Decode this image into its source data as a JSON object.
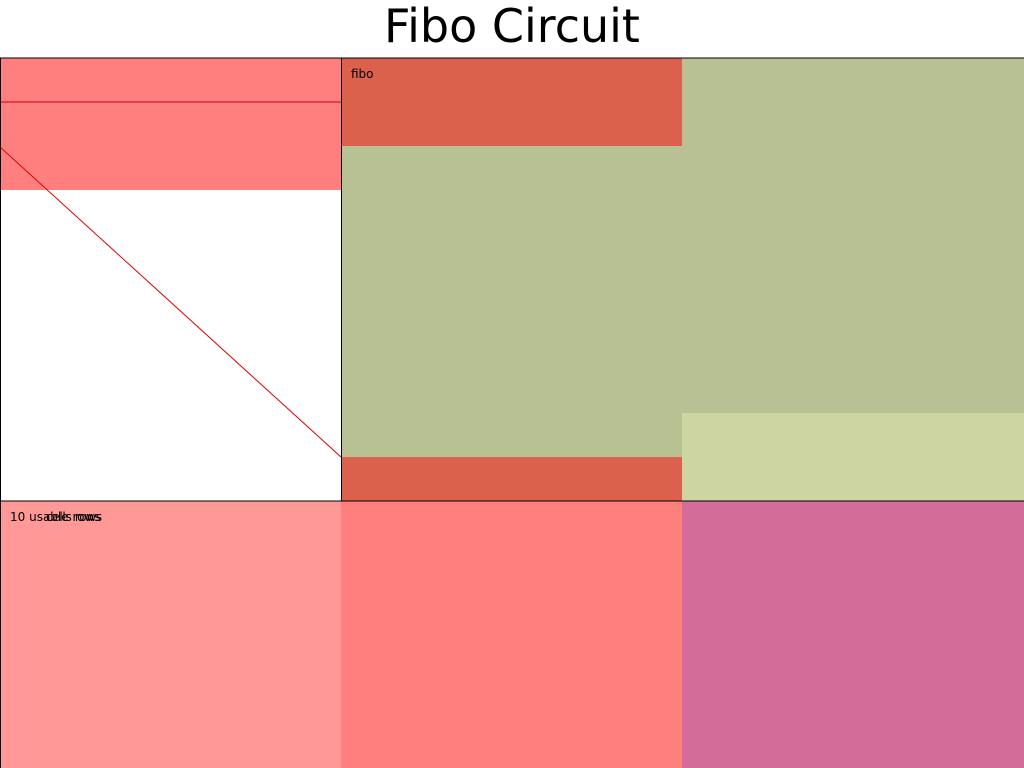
{
  "title": "Fibo Circuit",
  "labels": {
    "region": "fibo",
    "usable_rows": "10 usable rows",
    "overlap_text": "cells rows"
  },
  "colors": {
    "red_light": "#ff7f7f",
    "red_dark": "#dc614c",
    "olive": "#b8c194",
    "olive_light": "#cdd6a2",
    "salmon": "#ff9897",
    "pink": "#d46c9a",
    "line_red": "#e00000",
    "border": "#000000"
  }
}
